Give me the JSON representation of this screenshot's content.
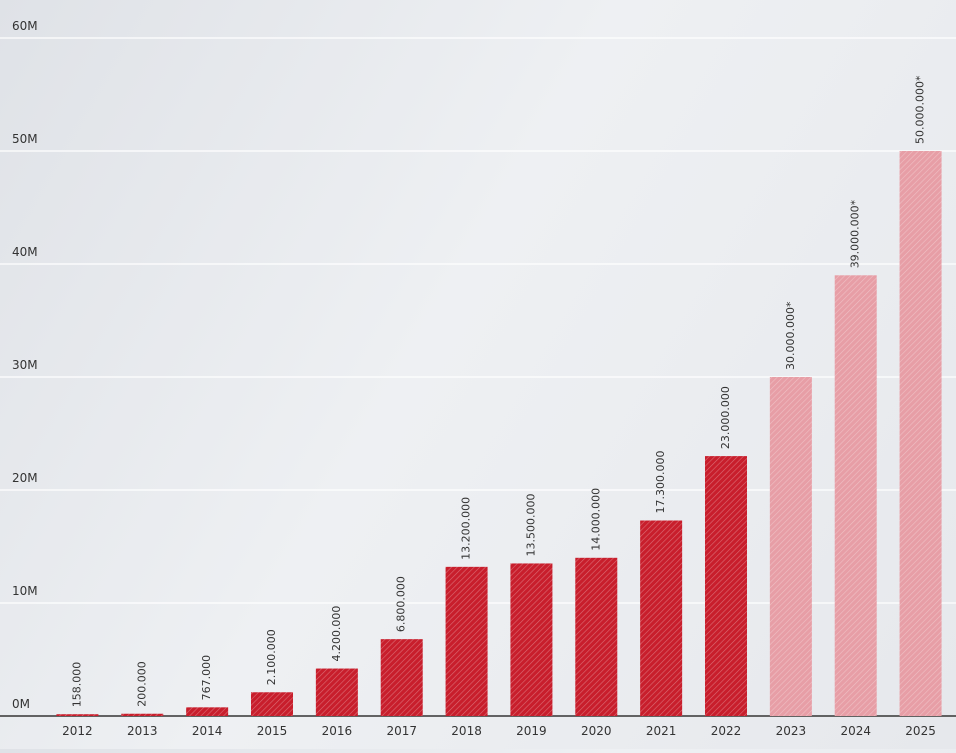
{
  "chart_data": {
    "type": "bar",
    "categories": [
      "2012",
      "2013",
      "2014",
      "2015",
      "2016",
      "2017",
      "2018",
      "2019",
      "2020",
      "2021",
      "2022",
      "2023",
      "2024",
      "2025"
    ],
    "values": [
      158000,
      200000,
      767000,
      2100000,
      4200000,
      6800000,
      13200000,
      13500000,
      14000000,
      17300000,
      23000000,
      30000000,
      39000000,
      50000000
    ],
    "value_labels": [
      "158.000",
      "200.000",
      "767.000",
      "2.100.000",
      "4.200.000",
      "6.800.000",
      "13.200.000",
      "13.500.000",
      "14.000.000",
      "17.300.000",
      "23.000.000",
      "30.000.000*",
      "39.000.000*",
      "50.000.000*"
    ],
    "colors": [
      "#c81e2c",
      "#c81e2c",
      "#c81e2c",
      "#c81e2c",
      "#c81e2c",
      "#c81e2c",
      "#c81e2c",
      "#c81e2c",
      "#c81e2c",
      "#c81e2c",
      "#c81e2c",
      "#e79ea6",
      "#e79ea6",
      "#e79ea6"
    ],
    "ylim": [
      0,
      60000000
    ],
    "yticks": [
      {
        "value": 0,
        "label": "0M"
      },
      {
        "value": 10000000,
        "label": "10M"
      },
      {
        "value": 20000000,
        "label": "20M"
      },
      {
        "value": 30000000,
        "label": "30M"
      },
      {
        "value": 40000000,
        "label": "40M"
      },
      {
        "value": 50000000,
        "label": "50M"
      },
      {
        "value": 60000000,
        "label": "60M"
      }
    ],
    "grid": true
  }
}
